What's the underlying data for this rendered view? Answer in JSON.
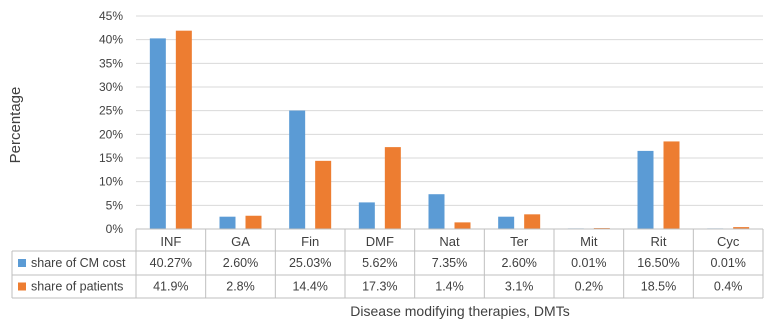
{
  "chart_data": {
    "type": "bar",
    "title": "",
    "xlabel": "Disease modifying therapies, DMTs",
    "ylabel": "Percentage",
    "ylim": [
      0,
      45
    ],
    "yticks": [
      "0%",
      "5%",
      "10%",
      "15%",
      "20%",
      "25%",
      "30%",
      "35%",
      "40%",
      "45%"
    ],
    "ytick_values": [
      0,
      5,
      10,
      15,
      20,
      25,
      30,
      35,
      40,
      45
    ],
    "grid": true,
    "legend": "data-table-left",
    "categories": [
      "INF",
      "GA",
      "Fin",
      "DMF",
      "Nat",
      "Ter",
      "Mit",
      "Rit",
      "Cyc"
    ],
    "series": [
      {
        "name": "share of CM cost",
        "color": "#5b9bd5",
        "values": [
          40.27,
          2.6,
          25.03,
          5.62,
          7.35,
          2.6,
          0.01,
          16.5,
          0.01
        ],
        "labels": [
          "40.27%",
          "2.60%",
          "25.03%",
          "5.62%",
          "7.35%",
          "2.60%",
          "0.01%",
          "16.50%",
          "0.01%"
        ]
      },
      {
        "name": "share of patients",
        "color": "#ed7d31",
        "values": [
          41.9,
          2.8,
          14.4,
          17.3,
          1.4,
          3.1,
          0.2,
          18.5,
          0.4
        ],
        "labels": [
          "41.9%",
          "2.8%",
          "14.4%",
          "17.3%",
          "1.4%",
          "3.1%",
          "0.2%",
          "18.5%",
          "0.4%"
        ]
      }
    ]
  }
}
